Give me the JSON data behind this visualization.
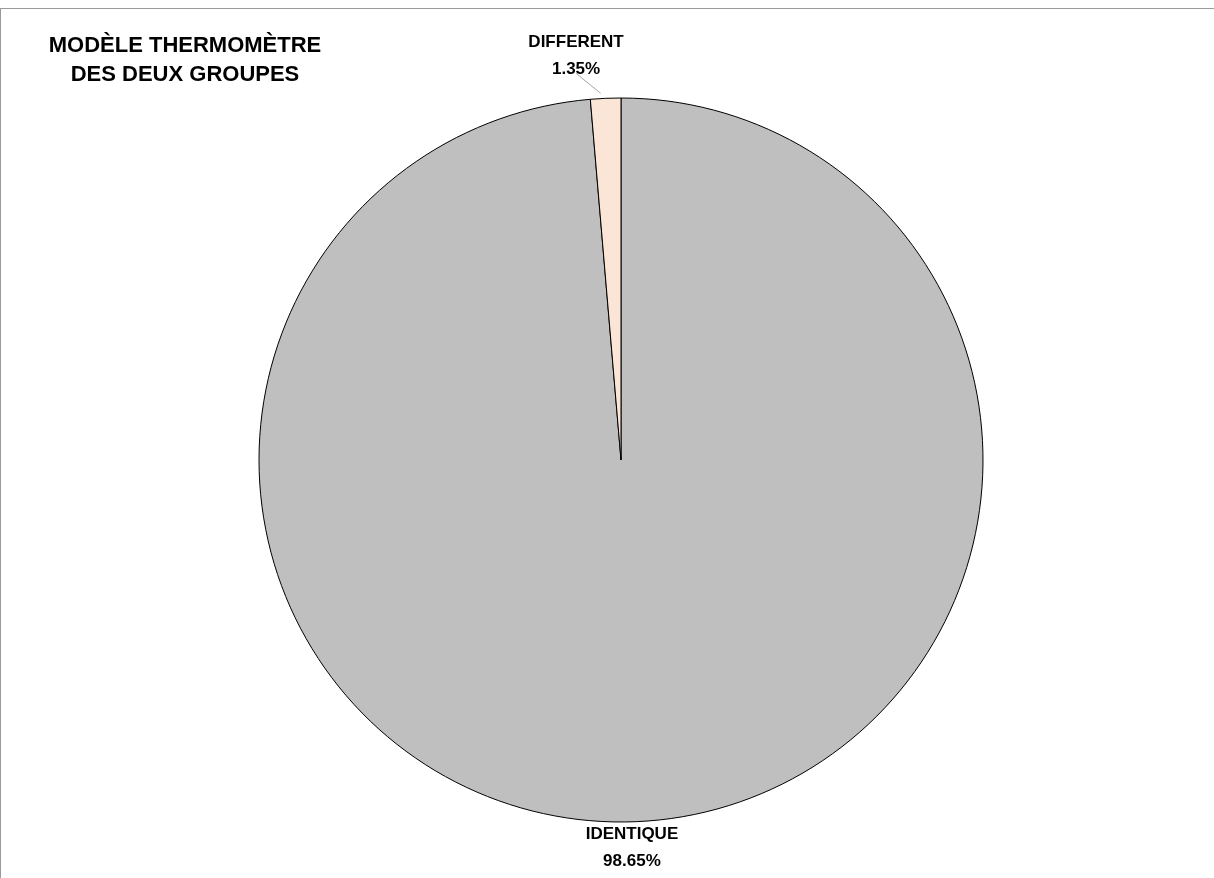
{
  "chart_data": {
    "type": "pie",
    "title": "MODÈLE THERMOMÈTRE DES DEUX GROUPES",
    "categories": [
      "IDENTIQUE",
      "DIFFERENT"
    ],
    "values": [
      98.65,
      1.35
    ],
    "colors": [
      "#bfbfbf",
      "#fbe5d6"
    ],
    "value_labels": [
      "98.65%",
      "1.35%"
    ],
    "legend": false
  }
}
